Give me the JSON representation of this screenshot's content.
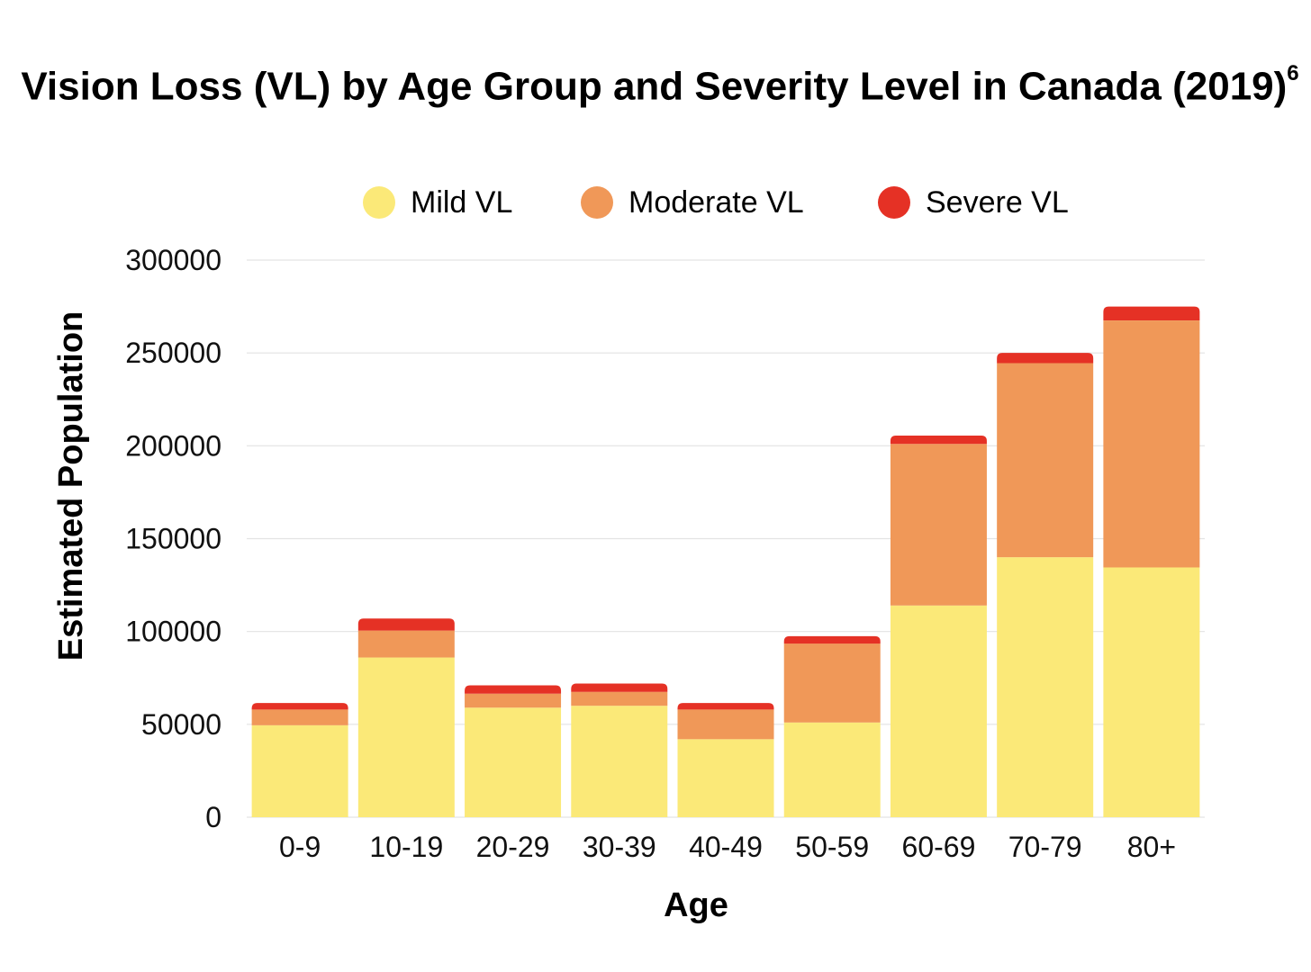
{
  "chart_data": {
    "type": "bar",
    "stacked": true,
    "title": "Vision Loss (VL) by Age Group and Severity Level in Canada (2019)",
    "title_superscript": "6",
    "xlabel": "Age",
    "ylabel": "Estimated Population",
    "ylim": [
      0,
      300000
    ],
    "yticks": [
      0,
      50000,
      100000,
      150000,
      200000,
      250000,
      300000
    ],
    "grid": true,
    "legend_position": "top-center",
    "categories": [
      "0-9",
      "10-19",
      "20-29",
      "30-39",
      "40-49",
      "50-59",
      "60-69",
      "70-79",
      "80+"
    ],
    "series": [
      {
        "name": "Mild VL",
        "color": "#fbe978",
        "values": [
          49500,
          86000,
          59000,
          60000,
          42000,
          51000,
          114000,
          140000,
          134500
        ]
      },
      {
        "name": "Moderate VL",
        "color": "#f09858",
        "values": [
          8500,
          14500,
          7500,
          7500,
          16000,
          42500,
          87000,
          104500,
          133000
        ]
      },
      {
        "name": "Severe VL",
        "color": "#e53125",
        "values": [
          3500,
          6500,
          4500,
          4500,
          3500,
          4000,
          4500,
          5500,
          7500
        ]
      }
    ]
  }
}
